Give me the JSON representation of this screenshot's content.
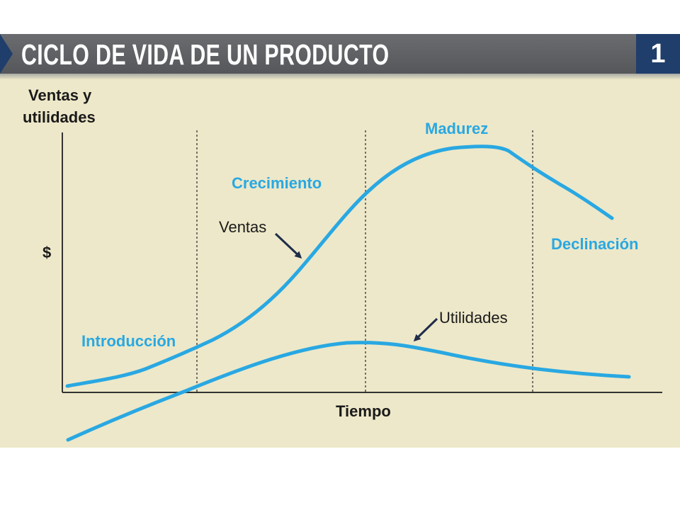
{
  "title": "CICLO DE VIDA DE UN PRODUCTO",
  "figure_number": "1",
  "colors": {
    "banner": "#5f6164",
    "tab": "#1f3e6b",
    "panel": "#ede8c9",
    "curve": "#29a8e2",
    "phase_label": "#29a8e2",
    "text": "#1a1a1a"
  },
  "y_axis": {
    "line1": "Ventas y",
    "line2": "utilidades",
    "unit": "$"
  },
  "x_axis": {
    "label": "Tiempo"
  },
  "phases": {
    "introduccion": "Introducción",
    "crecimiento": "Crecimiento",
    "madurez": "Madurez",
    "declinacion": "Declinación"
  },
  "annotations": {
    "ventas": "Ventas",
    "utilidades": "Utilidades"
  },
  "chart_data": {
    "type": "line",
    "series": [
      {
        "name": "Ventas"
      },
      {
        "name": "Utilidades"
      }
    ],
    "phases": [
      "Introducción",
      "Crecimiento",
      "Madurez",
      "Declinación"
    ]
  }
}
